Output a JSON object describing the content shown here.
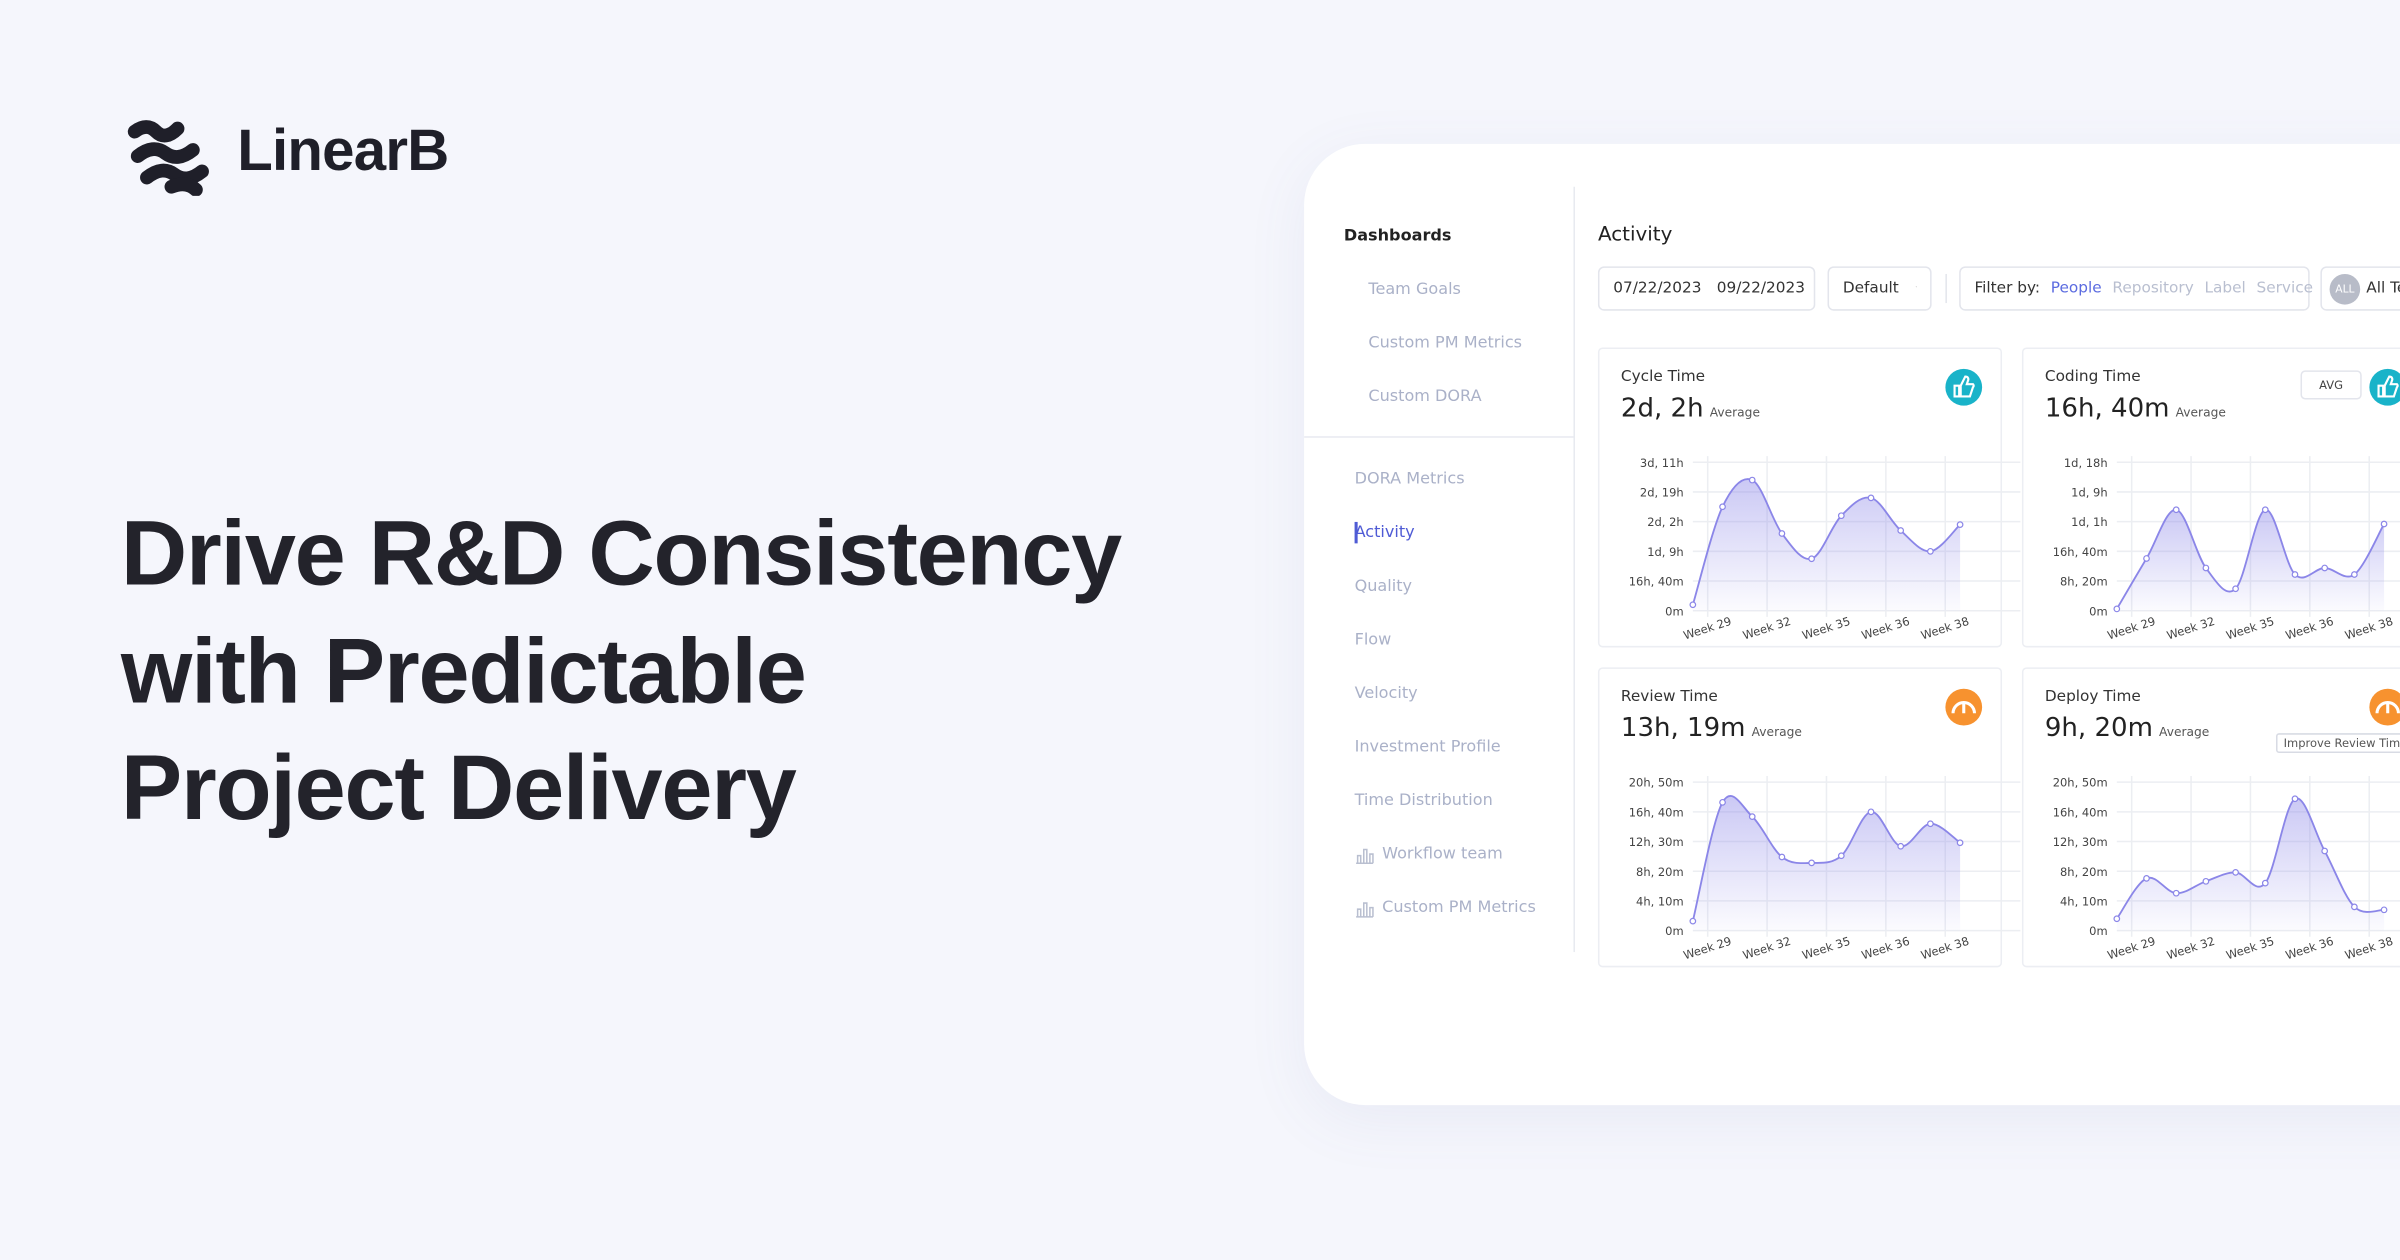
{
  "brand": "LinearB",
  "headline": [
    "Drive R&D Consistency",
    "with Predictable",
    "Project Delivery"
  ],
  "sidebar": {
    "title": "Dashboards",
    "dashboard_items": [
      "Team Goals",
      "Custom PM Metrics",
      "Custom DORA"
    ],
    "items": [
      "DORA Metrics",
      "Activity",
      "Quality",
      "Flow",
      "Velocity",
      "Investment Profile",
      "Time Distribution",
      "Workflow team",
      "Custom PM Metrics"
    ],
    "active_index": 1
  },
  "main": {
    "title": "Activity",
    "date_from": "07/22/2023",
    "date_to": "09/22/2023",
    "view": "Default",
    "filter_label": "Filter by:",
    "filters": [
      "People",
      "Repository",
      "Label",
      "Service"
    ],
    "team_badge": "ALL",
    "team": "All Teams"
  },
  "chart_data": [
    {
      "type": "line",
      "title": "Cycle Time",
      "summary": "2d, 2h",
      "summary_note": "Average",
      "icon": "thumb",
      "icon_color": "#19b3c9",
      "x": [
        0,
        1,
        2,
        3,
        4,
        5,
        6,
        7,
        8,
        9
      ],
      "xlim": [
        0,
        10
      ],
      "xticks": [
        {
          "value": 0.5,
          "label": "Week 29"
        },
        {
          "value": 2.5,
          "label": "Week 32"
        },
        {
          "value": 4.5,
          "label": "Week 35"
        },
        {
          "value": 6.5,
          "label": "Week 36"
        },
        {
          "value": 8.5,
          "label": "Week 38"
        }
      ],
      "ylim": [
        0,
        5000
      ],
      "yticks": [
        {
          "value": 0,
          "label": "0m"
        },
        {
          "value": 1000,
          "label": "16h, 40m"
        },
        {
          "value": 2000,
          "label": "1d, 9h"
        },
        {
          "value": 3000,
          "label": "2d, 2h"
        },
        {
          "value": 4000,
          "label": "2d, 19h"
        },
        {
          "value": 5000,
          "label": "3d, 11h"
        }
      ],
      "series": [
        {
          "color": "#8b86e8",
          "values": [
            200,
            3500,
            4400,
            2600,
            1750,
            3200,
            3800,
            2700,
            2000,
            2900
          ]
        }
      ]
    },
    {
      "type": "line",
      "title": "Coding Time",
      "summary": "16h, 40m",
      "summary_note": "Average",
      "icon": "thumb",
      "icon_color": "#19b3c9",
      "badge": "AVG",
      "x": [
        0,
        1,
        2,
        3,
        4,
        5,
        6,
        7,
        8,
        9
      ],
      "xlim": [
        0,
        10
      ],
      "xticks": [
        {
          "value": 0.5,
          "label": "Week 29"
        },
        {
          "value": 2.5,
          "label": "Week 32"
        },
        {
          "value": 4.5,
          "label": "Week 35"
        },
        {
          "value": 6.5,
          "label": "Week 36"
        },
        {
          "value": 8.5,
          "label": "Week 38"
        }
      ],
      "ylim": [
        0,
        2500
      ],
      "yticks": [
        {
          "value": 0,
          "label": "0m"
        },
        {
          "value": 500,
          "label": "8h, 20m"
        },
        {
          "value": 1000,
          "label": "16h, 40m"
        },
        {
          "value": 1500,
          "label": "1d, 1h"
        },
        {
          "value": 2000,
          "label": "1d, 9h"
        },
        {
          "value": 2500,
          "label": "1d, 18h"
        }
      ],
      "series": [
        {
          "color": "#8b86e8",
          "values": [
            30,
            880,
            1700,
            720,
            370,
            1700,
            610,
            720,
            610,
            1460
          ]
        }
      ]
    },
    {
      "type": "line",
      "title": "Review Time",
      "summary": "13h, 19m",
      "summary_note": "Average",
      "icon": "gauge",
      "icon_color": "#f7922f",
      "x": [
        0,
        1,
        2,
        3,
        4,
        5,
        6,
        7,
        8,
        9
      ],
      "xlim": [
        0,
        10
      ],
      "xticks": [
        {
          "value": 0.5,
          "label": "Week 29"
        },
        {
          "value": 2.5,
          "label": "Week 32"
        },
        {
          "value": 4.5,
          "label": "Week 35"
        },
        {
          "value": 6.5,
          "label": "Week 36"
        },
        {
          "value": 8.5,
          "label": "Week 38"
        }
      ],
      "ylim": [
        0,
        1250
      ],
      "yticks": [
        {
          "value": 0,
          "label": "0m"
        },
        {
          "value": 250,
          "label": "4h, 10m"
        },
        {
          "value": 500,
          "label": "8h, 20m"
        },
        {
          "value": 750,
          "label": "12h, 30m"
        },
        {
          "value": 1000,
          "label": "16h, 40m"
        },
        {
          "value": 1250,
          "label": "20h, 50m"
        }
      ],
      "series": [
        {
          "color": "#8b86e8",
          "values": [
            80,
            1080,
            960,
            620,
            570,
            630,
            1000,
            710,
            900,
            740
          ]
        }
      ]
    },
    {
      "type": "line",
      "title": "Deploy Time",
      "summary": "9h, 20m",
      "summary_note": "Average",
      "icon": "gauge",
      "icon_color": "#f7922f",
      "tooltip": "Improve Review Time",
      "x": [
        0,
        1,
        2,
        3,
        4,
        5,
        6,
        7,
        8,
        9
      ],
      "xlim": [
        0,
        10
      ],
      "xticks": [
        {
          "value": 0.5,
          "label": "Week 29"
        },
        {
          "value": 2.5,
          "label": "Week 32"
        },
        {
          "value": 4.5,
          "label": "Week 35"
        },
        {
          "value": 6.5,
          "label": "Week 36"
        },
        {
          "value": 8.5,
          "label": "Week 38"
        }
      ],
      "ylim": [
        0,
        1250
      ],
      "yticks": [
        {
          "value": 0,
          "label": "0m"
        },
        {
          "value": 250,
          "label": "4h, 10m"
        },
        {
          "value": 500,
          "label": "8h, 20m"
        },
        {
          "value": 750,
          "label": "12h, 30m"
        },
        {
          "value": 1000,
          "label": "16h, 40m"
        },
        {
          "value": 1250,
          "label": "20h, 50m"
        }
      ],
      "series": [
        {
          "color": "#8b86e8",
          "values": [
            100,
            440,
            315,
            415,
            490,
            400,
            1110,
            670,
            200,
            175
          ]
        }
      ]
    }
  ]
}
